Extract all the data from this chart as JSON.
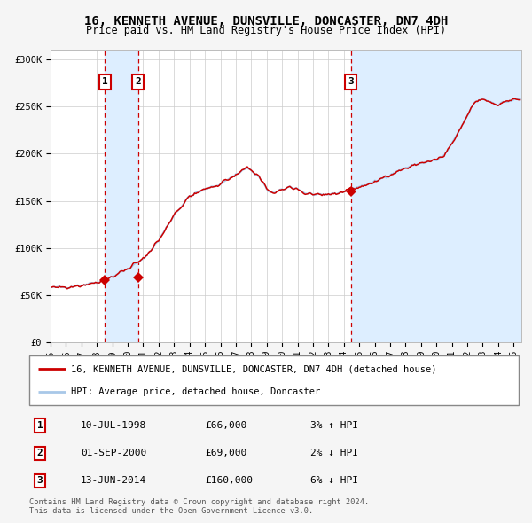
{
  "title": "16, KENNETH AVENUE, DUNSVILLE, DONCASTER, DN7 4DH",
  "subtitle": "Price paid vs. HM Land Registry's House Price Index (HPI)",
  "title_fontsize": 10,
  "subtitle_fontsize": 8.5,
  "xlim_start": 1995.0,
  "xlim_end": 2025.5,
  "ylim_min": 0,
  "ylim_max": 310000,
  "yticks": [
    0,
    50000,
    100000,
    150000,
    200000,
    250000,
    300000
  ],
  "ytick_labels": [
    "£0",
    "£50K",
    "£100K",
    "£150K",
    "£200K",
    "£250K",
    "£300K"
  ],
  "hpi_color": "#a8c8e8",
  "price_color": "#cc0000",
  "grid_color": "#cccccc",
  "sale_dates": [
    1998.53,
    2000.67,
    2014.45
  ],
  "sale_prices": [
    66000,
    69000,
    160000
  ],
  "sale_labels": [
    "1",
    "2",
    "3"
  ],
  "vspan_color": "#ddeeff",
  "vline_color": "#cc0000",
  "legend_line1": "16, KENNETH AVENUE, DUNSVILLE, DONCASTER, DN7 4DH (detached house)",
  "legend_line2": "HPI: Average price, detached house, Doncaster",
  "table_data": [
    [
      "1",
      "10-JUL-1998",
      "£66,000",
      "3% ↑ HPI"
    ],
    [
      "2",
      "01-SEP-2000",
      "£69,000",
      "2% ↓ HPI"
    ],
    [
      "3",
      "13-JUN-2014",
      "£160,000",
      "6% ↓ HPI"
    ]
  ],
  "footer": "Contains HM Land Registry data © Crown copyright and database right 2024.\nThis data is licensed under the Open Government Licence v3.0."
}
